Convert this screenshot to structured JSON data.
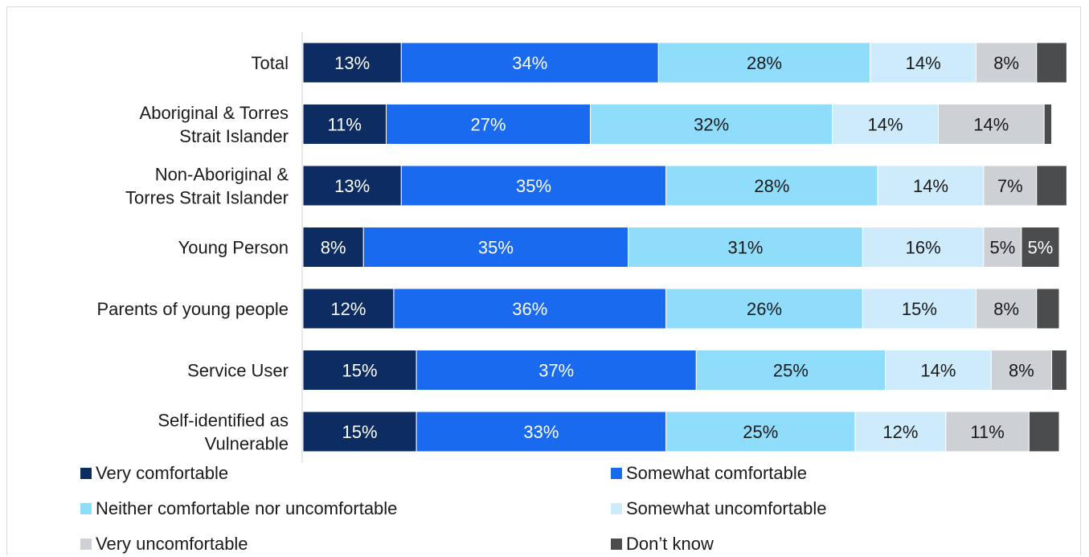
{
  "chart_data": {
    "type": "bar",
    "orientation": "horizontal",
    "stacked": true,
    "title": "",
    "xlabel": "",
    "ylabel": "",
    "xlim": [
      0,
      100
    ],
    "grid": false,
    "legend_position": "bottom",
    "categories": [
      "Total",
      "Aboriginal & Torres Strait Islander",
      "Non-Aboriginal & Torres Strait Islander",
      "Young Person",
      "Parents of young people",
      "Service User",
      "Self-identified as Vulnerable"
    ],
    "category_lines": [
      [
        "Total"
      ],
      [
        "Aboriginal & Torres",
        "Strait Islander"
      ],
      [
        "Non-Aboriginal &",
        "Torres Strait Islander"
      ],
      [
        "Young Person"
      ],
      [
        "Parents of young people"
      ],
      [
        "Service User"
      ],
      [
        "Self-identified as",
        "Vulnerable"
      ]
    ],
    "series": [
      {
        "name": "Very comfortable",
        "color": "#0d2c62",
        "values": [
          13,
          11,
          13,
          8,
          12,
          15,
          15
        ],
        "labels": [
          "13%",
          "11%",
          "13%",
          "8%",
          "12%",
          "15%",
          "15%"
        ]
      },
      {
        "name": "Somewhat comfortable",
        "color": "#1a6aef",
        "values": [
          34,
          27,
          35,
          35,
          36,
          37,
          33
        ],
        "labels": [
          "34%",
          "27%",
          "35%",
          "35%",
          "36%",
          "37%",
          "33%"
        ]
      },
      {
        "name": "Neither comfortable nor uncomfortable",
        "color": "#8fdcfb",
        "values": [
          28,
          32,
          28,
          31,
          26,
          25,
          25
        ],
        "labels": [
          "28%",
          "32%",
          "28%",
          "31%",
          "26%",
          "25%",
          "25%"
        ]
      },
      {
        "name": "Somewhat uncomfortable",
        "color": "#cdebfb",
        "values": [
          14,
          14,
          14,
          16,
          15,
          14,
          12
        ],
        "labels": [
          "14%",
          "14%",
          "14%",
          "16%",
          "15%",
          "14%",
          "12%"
        ]
      },
      {
        "name": "Very uncomfortable",
        "color": "#cdd1d5",
        "values": [
          8,
          14,
          7,
          5,
          8,
          8,
          11
        ],
        "labels": [
          "8%",
          "14%",
          "7%",
          "5%",
          "8%",
          "8%",
          "11%"
        ]
      },
      {
        "name": "Don’t know",
        "color": "#4a4c4e",
        "values": [
          4,
          1,
          4,
          5,
          3,
          2,
          4
        ],
        "labels": [
          "",
          "",
          "",
          "5%",
          "",
          "",
          ""
        ]
      }
    ]
  }
}
